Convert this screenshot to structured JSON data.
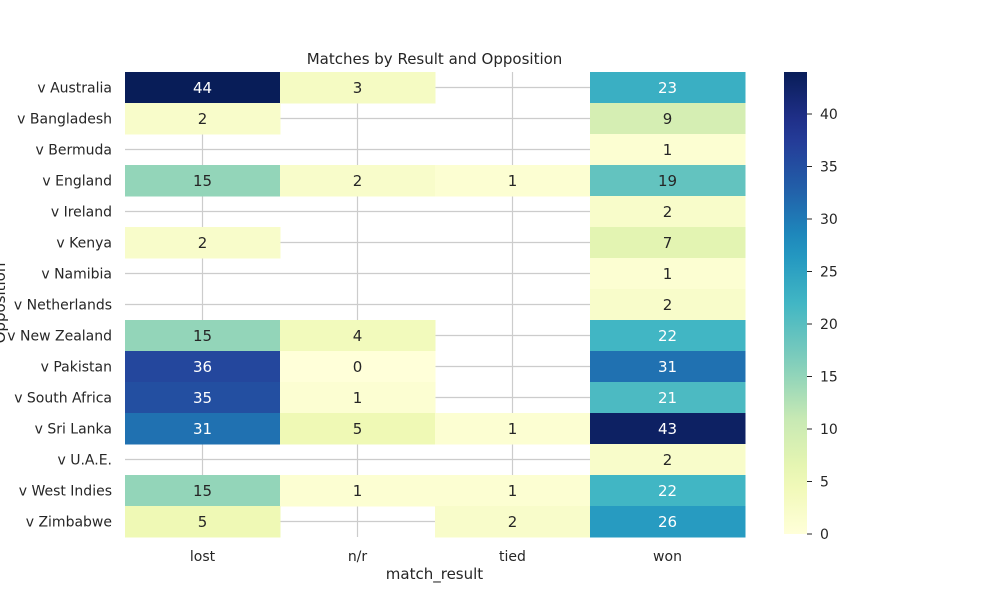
{
  "chart_data": {
    "type": "heatmap",
    "title": "Matches by Result and Opposition",
    "xlabel": "match_result",
    "ylabel": "Opposition",
    "x_categories": [
      "lost",
      "n/r",
      "tied",
      "won"
    ],
    "y_categories": [
      "v Australia",
      "v Bangladesh",
      "v Bermuda",
      "v England",
      "v Ireland",
      "v Kenya",
      "v Namibia",
      "v Netherlands",
      "v New Zealand",
      "v Pakistan",
      "v South Africa",
      "v Sri Lanka",
      "v U.A.E.",
      "v West Indies",
      "v Zimbabwe"
    ],
    "values": [
      [
        44,
        3,
        null,
        23
      ],
      [
        2,
        null,
        null,
        9
      ],
      [
        null,
        null,
        null,
        1
      ],
      [
        15,
        2,
        1,
        19
      ],
      [
        null,
        null,
        null,
        2
      ],
      [
        2,
        null,
        null,
        7
      ],
      [
        null,
        null,
        null,
        1
      ],
      [
        null,
        null,
        null,
        2
      ],
      [
        15,
        4,
        null,
        22
      ],
      [
        36,
        0,
        null,
        31
      ],
      [
        35,
        1,
        null,
        21
      ],
      [
        31,
        5,
        1,
        43
      ],
      [
        null,
        null,
        null,
        2
      ],
      [
        15,
        1,
        1,
        22
      ],
      [
        5,
        null,
        2,
        26
      ]
    ],
    "colorbar": {
      "min": 0,
      "max": 44,
      "ticks": [
        0,
        5,
        10,
        15,
        20,
        25,
        30,
        35,
        40
      ],
      "colormap": "YlGnBu"
    },
    "grid": true
  }
}
